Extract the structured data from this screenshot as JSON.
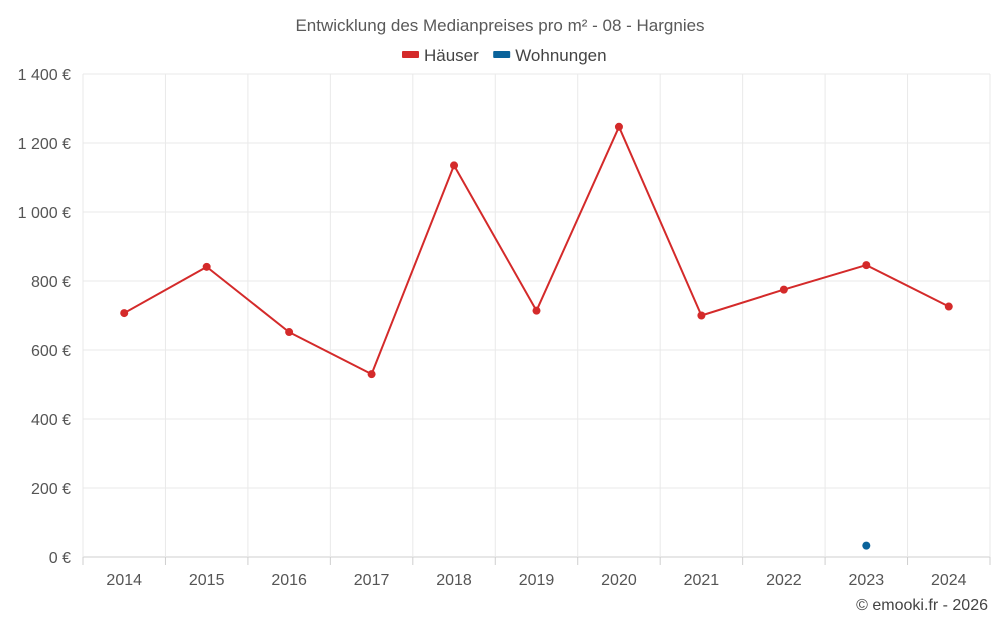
{
  "chart_data": {
    "type": "line",
    "title": "Entwicklung des Medianpreises pro m² - 08 - Hargnies",
    "categories": [
      "2014",
      "2015",
      "2016",
      "2017",
      "2018",
      "2019",
      "2020",
      "2021",
      "2022",
      "2023",
      "2024"
    ],
    "series": [
      {
        "name": "Häuser",
        "color": "#d42a2a",
        "values": [
          707,
          841,
          652,
          530,
          1135,
          714,
          1247,
          700,
          775,
          846,
          726
        ]
      },
      {
        "name": "Wohnungen",
        "color": "#0a639b",
        "values": [
          null,
          null,
          null,
          null,
          null,
          null,
          null,
          null,
          null,
          33,
          null
        ]
      }
    ],
    "ylim": [
      0,
      1400
    ],
    "yticks": [
      0,
      200,
      400,
      600,
      800,
      1000,
      1200,
      1400
    ],
    "ytick_labels": [
      "0 €",
      "200 €",
      "400 €",
      "600 €",
      "800 €",
      "1 000 €",
      "1 200 €",
      "1 400 €"
    ],
    "grid": true,
    "legend_position": "top-center"
  },
  "credit": "© emooki.fr - 2026"
}
